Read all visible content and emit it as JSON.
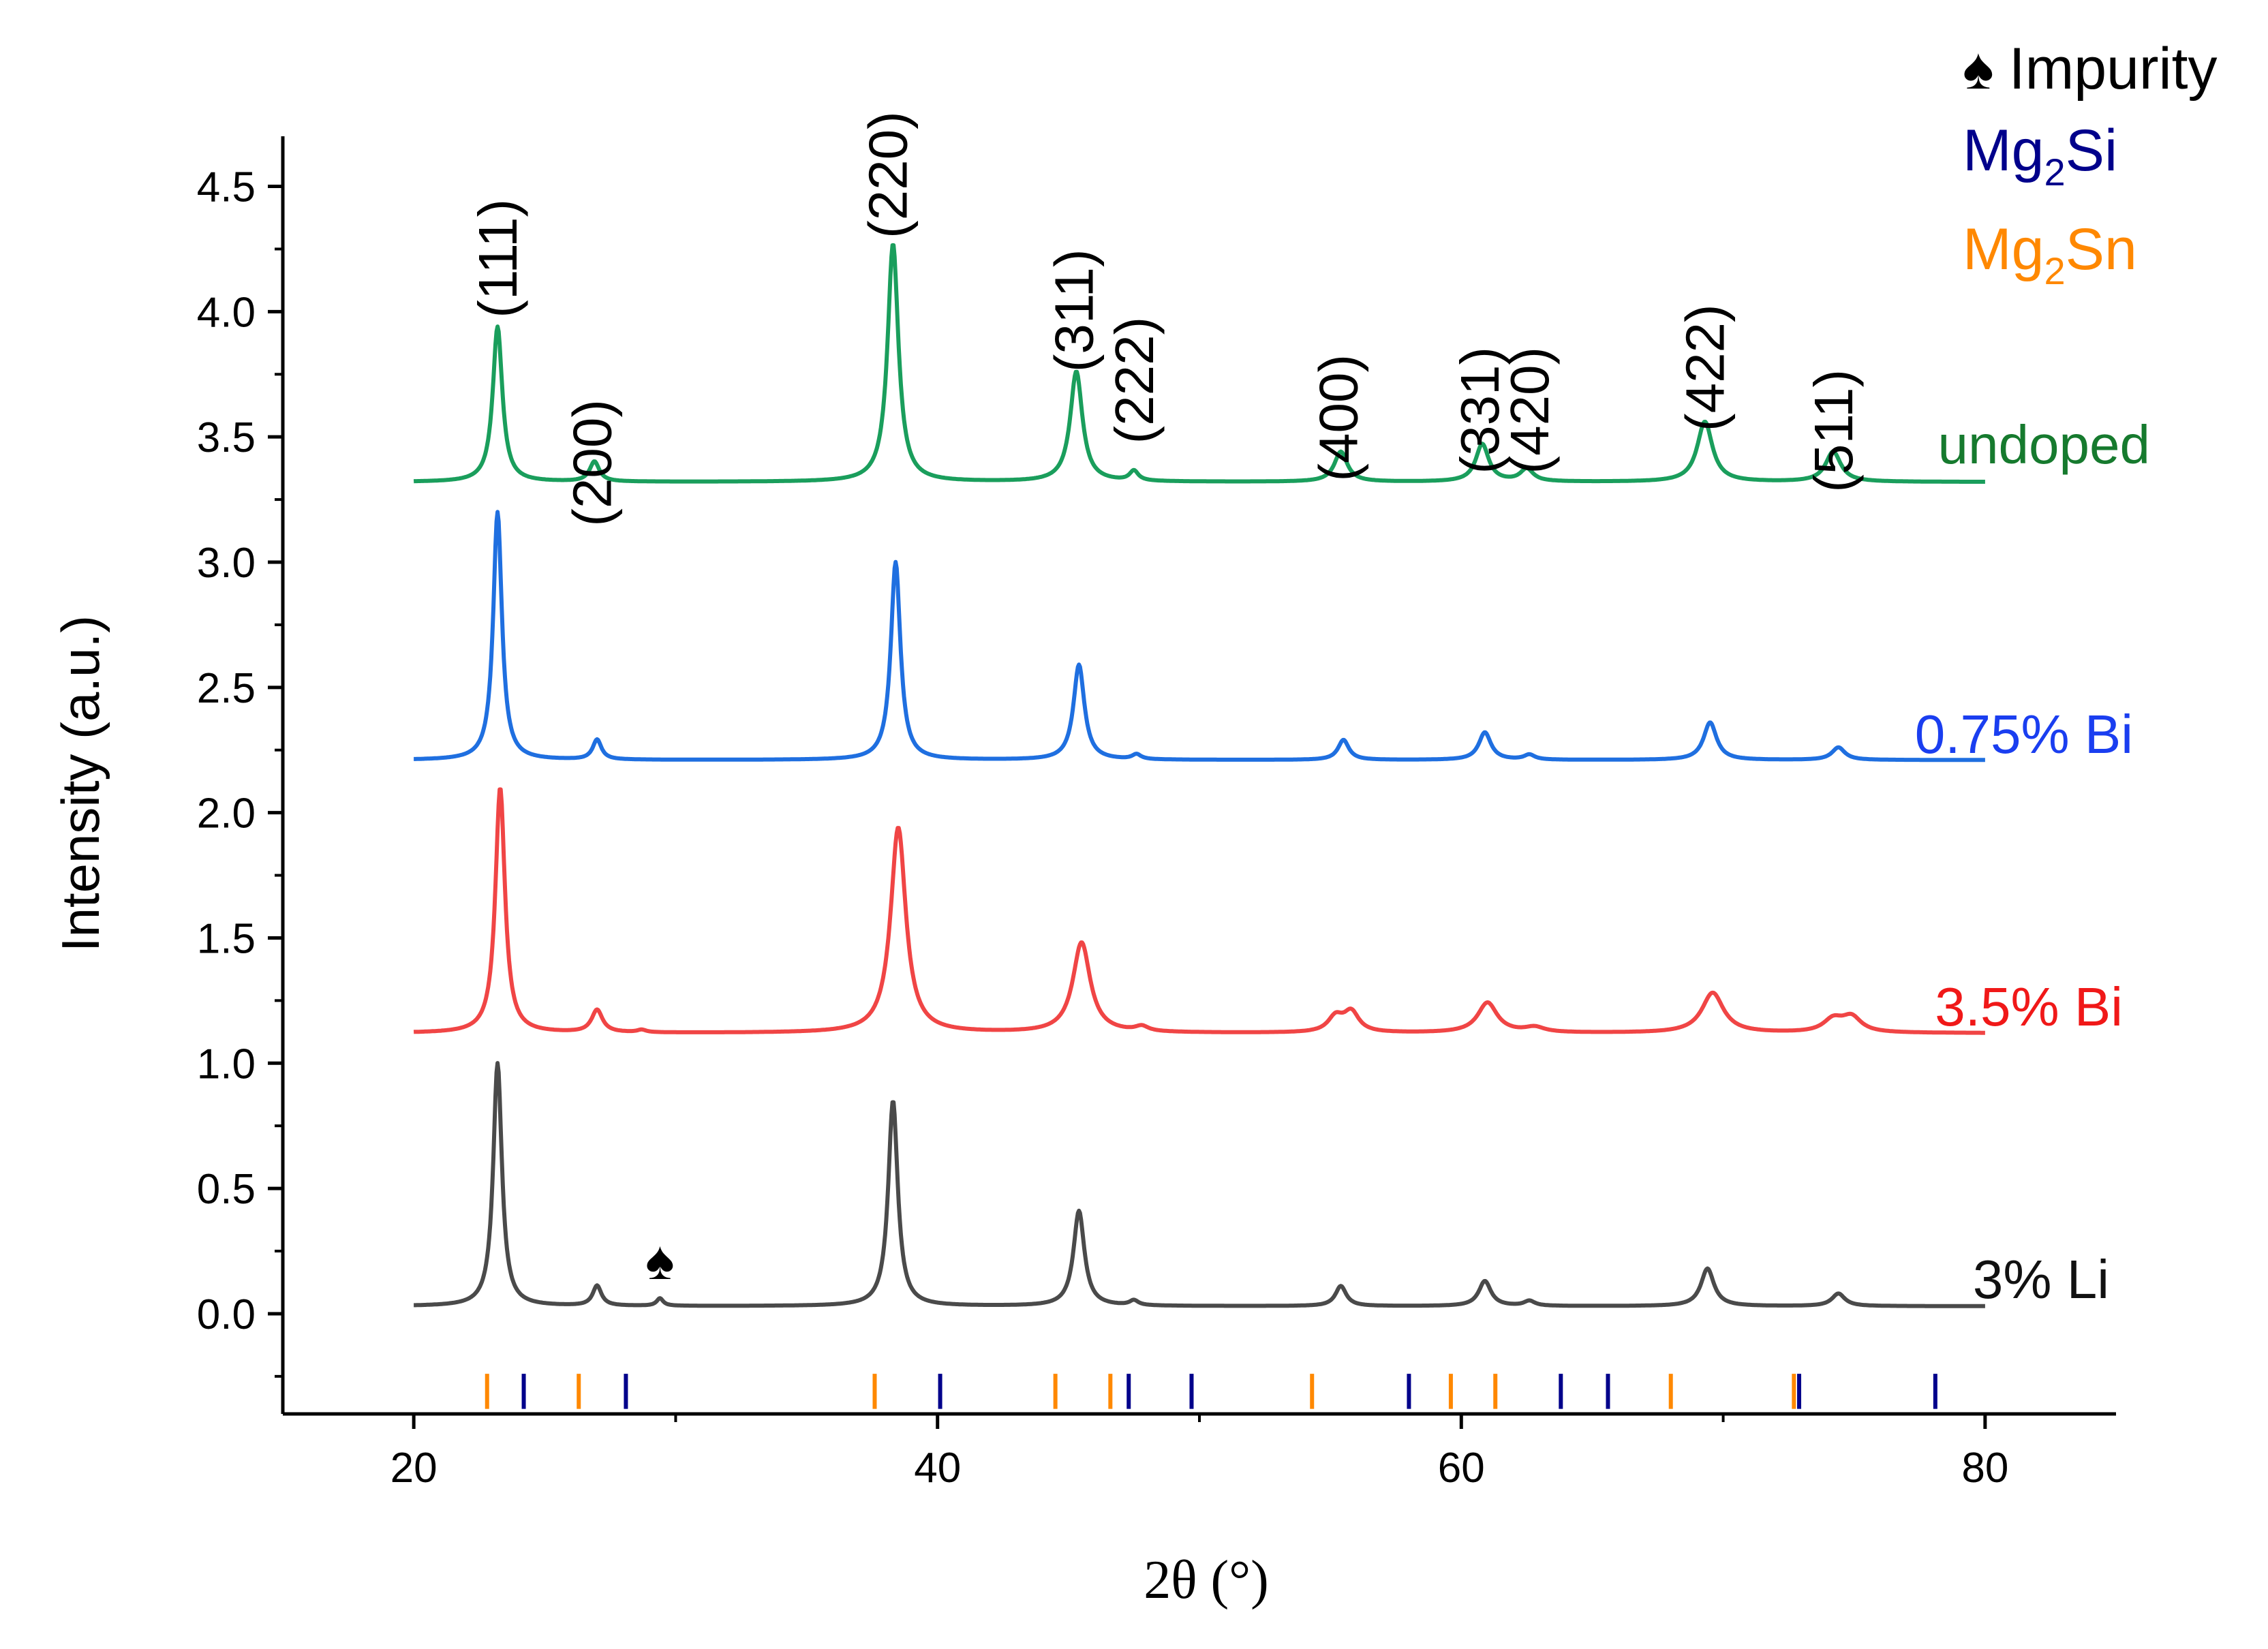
{
  "chart_data": {
    "type": "line",
    "title": "",
    "xlabel": "2θ (°)",
    "ylabel": "Intensity (a.u.)",
    "xlim": [
      15,
      85
    ],
    "ylim": [
      -0.4,
      4.7
    ],
    "x_ticks": [
      20,
      40,
      60,
      80
    ],
    "x_tick_labels": [
      "20",
      "40",
      "60",
      "80"
    ],
    "y_ticks": [
      0.0,
      0.5,
      1.0,
      1.5,
      2.0,
      2.5,
      3.0,
      3.5,
      4.0,
      4.5
    ],
    "y_tick_labels": [
      "0.0",
      "0.5",
      "1.0",
      "1.5",
      "2.0",
      "2.5",
      "3.0",
      "3.5",
      "4.0",
      "4.5"
    ],
    "grid": false,
    "series": [
      {
        "name": "undoped",
        "label": "undoped",
        "color": "#1a9e5c",
        "label_color": "#167a2e",
        "baseline": 3.32,
        "peaks": [
          {
            "x": 23.2,
            "h": 0.62,
            "w": 0.22
          },
          {
            "x": 26.9,
            "h": 0.08,
            "w": 0.22
          },
          {
            "x": 38.3,
            "h": 0.95,
            "w": 0.25
          },
          {
            "x": 45.3,
            "h": 0.44,
            "w": 0.28
          },
          {
            "x": 47.5,
            "h": 0.04,
            "w": 0.2
          },
          {
            "x": 55.4,
            "h": 0.12,
            "w": 0.3
          },
          {
            "x": 60.8,
            "h": 0.15,
            "w": 0.3
          },
          {
            "x": 62.5,
            "h": 0.05,
            "w": 0.3
          },
          {
            "x": 69.3,
            "h": 0.24,
            "w": 0.35
          },
          {
            "x": 74.2,
            "h": 0.12,
            "w": 0.35
          }
        ]
      },
      {
        "name": "0.75% Bi",
        "label": "0.75% Bi",
        "color": "#1f6fe0",
        "label_color": "#1a3ef0",
        "baseline": 2.21,
        "peaks": [
          {
            "x": 23.2,
            "h": 0.99,
            "w": 0.2
          },
          {
            "x": 27.0,
            "h": 0.08,
            "w": 0.2
          },
          {
            "x": 38.4,
            "h": 0.79,
            "w": 0.22
          },
          {
            "x": 45.4,
            "h": 0.38,
            "w": 0.25
          },
          {
            "x": 47.6,
            "h": 0.02,
            "w": 0.2
          },
          {
            "x": 55.5,
            "h": 0.08,
            "w": 0.25
          },
          {
            "x": 60.9,
            "h": 0.11,
            "w": 0.28
          },
          {
            "x": 62.6,
            "h": 0.02,
            "w": 0.25
          },
          {
            "x": 69.5,
            "h": 0.15,
            "w": 0.3
          },
          {
            "x": 74.4,
            "h": 0.05,
            "w": 0.3
          }
        ]
      },
      {
        "name": "3.5% Bi",
        "label": "3.5% Bi",
        "color": "#f04545",
        "label_color": "#f01818",
        "baseline": 1.12,
        "peaks": [
          {
            "x": 23.3,
            "h": 0.98,
            "w": 0.22
          },
          {
            "x": 27.0,
            "h": 0.09,
            "w": 0.25
          },
          {
            "x": 28.7,
            "h": 0.01,
            "w": 0.2
          },
          {
            "x": 38.5,
            "h": 0.82,
            "w": 0.35
          },
          {
            "x": 45.5,
            "h": 0.36,
            "w": 0.4
          },
          {
            "x": 47.8,
            "h": 0.02,
            "w": 0.3
          },
          {
            "x": 55.2,
            "h": 0.06,
            "w": 0.35
          },
          {
            "x": 55.8,
            "h": 0.08,
            "w": 0.35
          },
          {
            "x": 61.0,
            "h": 0.12,
            "w": 0.45
          },
          {
            "x": 62.8,
            "h": 0.02,
            "w": 0.45
          },
          {
            "x": 69.6,
            "h": 0.16,
            "w": 0.5
          },
          {
            "x": 74.2,
            "h": 0.05,
            "w": 0.45
          },
          {
            "x": 74.9,
            "h": 0.06,
            "w": 0.45
          }
        ]
      },
      {
        "name": "3% Li",
        "label": "3% Li",
        "color": "#4a4a4a",
        "label_color": "#111111",
        "baseline": 0.03,
        "peaks": [
          {
            "x": 23.2,
            "h": 0.97,
            "w": 0.2
          },
          {
            "x": 27.0,
            "h": 0.08,
            "w": 0.2
          },
          {
            "x": 29.4,
            "h": 0.03,
            "w": 0.15
          },
          {
            "x": 38.3,
            "h": 0.82,
            "w": 0.22
          },
          {
            "x": 45.4,
            "h": 0.38,
            "w": 0.25
          },
          {
            "x": 47.5,
            "h": 0.02,
            "w": 0.2
          },
          {
            "x": 55.4,
            "h": 0.08,
            "w": 0.25
          },
          {
            "x": 60.9,
            "h": 0.1,
            "w": 0.28
          },
          {
            "x": 62.6,
            "h": 0.02,
            "w": 0.25
          },
          {
            "x": 69.4,
            "h": 0.15,
            "w": 0.3
          },
          {
            "x": 74.4,
            "h": 0.05,
            "w": 0.3
          }
        ]
      }
    ],
    "reference_markers": [
      {
        "name": "Mg2Sn",
        "color": "#ff8800",
        "positions": [
          22.8,
          26.3,
          37.6,
          44.5,
          46.6,
          54.3,
          59.6,
          61.3,
          68.0,
          72.7
        ]
      },
      {
        "name": "Mg2Si",
        "color": "#00008b",
        "positions": [
          24.2,
          28.1,
          40.1,
          47.3,
          49.7,
          58.0,
          63.8,
          65.6,
          72.9,
          78.1
        ]
      }
    ],
    "miller_indices": [
      {
        "label": "(111)",
        "x": 23.3,
        "y": 4.45
      },
      {
        "label": "(200)",
        "x": 26.9,
        "y": 3.65
      },
      {
        "label": "(220)",
        "x": 38.2,
        "y": 4.8
      },
      {
        "label": "(311)",
        "x": 45.3,
        "y": 4.25
      },
      {
        "label": "(222)",
        "x": 47.6,
        "y": 3.98
      },
      {
        "label": "(400)",
        "x": 55.4,
        "y": 3.83
      },
      {
        "label": "(331)",
        "x": 60.8,
        "y": 3.86
      },
      {
        "label": "(420)",
        "x": 62.7,
        "y": 3.86
      },
      {
        "label": "(422)",
        "x": 69.4,
        "y": 4.03
      },
      {
        "label": "(511)",
        "x": 74.3,
        "y": 3.77
      }
    ],
    "impurity_marker": {
      "symbol": "♠",
      "x": 29.4,
      "y": 0.22
    },
    "legend": {
      "placement": "top-right",
      "items": [
        {
          "symbol": "♠",
          "label": "Impurity",
          "color": "#000000"
        },
        {
          "prefix": "Mg",
          "subscript": "2",
          "suffix": "Si",
          "color": "#00008b"
        },
        {
          "prefix": "Mg",
          "subscript": "2",
          "suffix": "Sn",
          "color": "#ff8800"
        }
      ]
    }
  }
}
